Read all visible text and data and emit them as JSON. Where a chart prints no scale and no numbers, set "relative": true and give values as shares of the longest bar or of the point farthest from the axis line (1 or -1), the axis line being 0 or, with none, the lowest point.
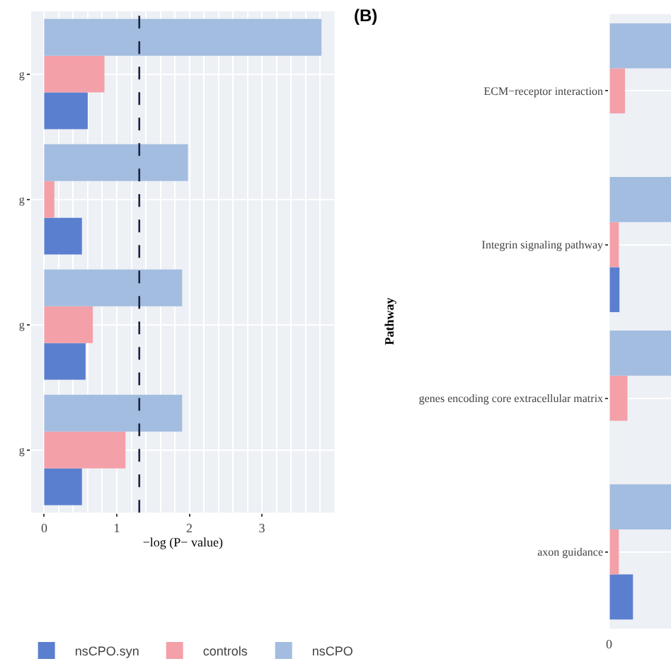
{
  "chart_data": [
    {
      "type": "bar",
      "orientation": "horizontal",
      "categories": [
        "g",
        "g",
        "g",
        "g"
      ],
      "xlabel": "−log (P− value)",
      "xlim": [
        -0.18,
        4.0
      ],
      "xticks": [
        0,
        1,
        2,
        3
      ],
      "grid": true,
      "legend": "bottom",
      "series": [
        {
          "name": "nsCPO.syn",
          "color": "#5b7fcf",
          "values": [
            0.6,
            0.52,
            0.57,
            0.52
          ]
        },
        {
          "name": "controls",
          "color": "#f4a0a8",
          "values": [
            0.83,
            0.14,
            0.67,
            1.12
          ]
        },
        {
          "name": "nsCPO",
          "color": "#a3bde0",
          "values": [
            3.82,
            1.98,
            1.9,
            1.9
          ]
        }
      ],
      "ref_lines": [
        {
          "axis": "x",
          "value": 1.31,
          "color": "#1a2440",
          "line_style": "dashed"
        }
      ]
    },
    {
      "type": "bar",
      "orientation": "horizontal",
      "relative": true,
      "title": "(B)",
      "ylabel": "Pathway",
      "grid": "y",
      "categories": [
        "ECM−receptor interaction",
        "Integrin signaling pathway",
        "genes encoding core extracellular matrix",
        "axon guidance"
      ],
      "series": [
        {
          "color": "#5b7fcf",
          "values": [
            null,
            0.16,
            null,
            0.38
          ]
        },
        {
          "color": "#f4a0a8",
          "values": [
            0.25,
            0.15,
            0.29,
            0.15
          ]
        },
        {
          "color": "#a3bde0",
          "values": [
            1,
            1,
            1,
            1
          ]
        }
      ],
      "annotations": [
        "0"
      ]
    }
  ]
}
